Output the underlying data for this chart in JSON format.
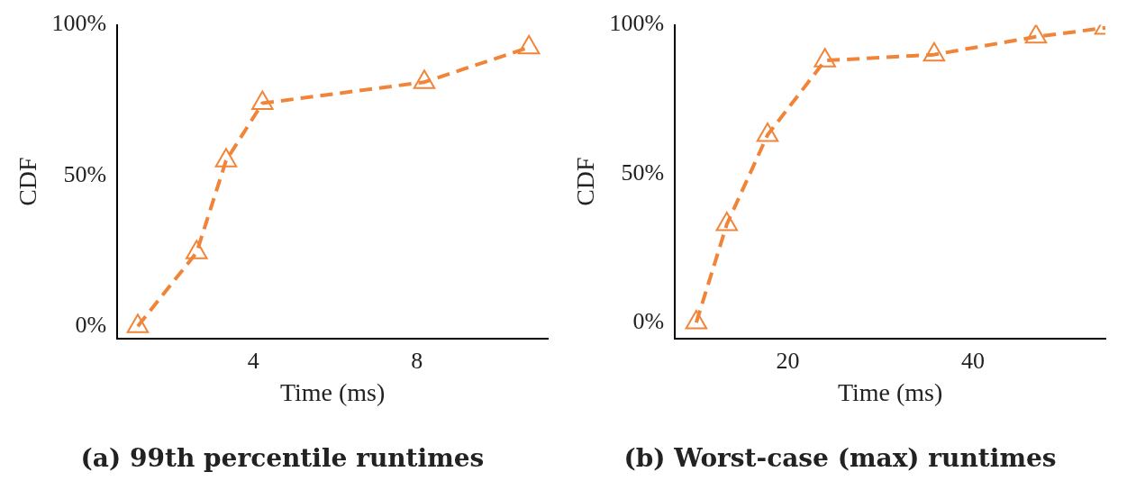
{
  "chart_data": [
    {
      "type": "line",
      "title": "(a) 99th percentile runtimes",
      "xlabel": "Time (ms)",
      "ylabel": "CDF",
      "x": [
        1.17,
        2.61,
        3.33,
        4.22,
        8.18,
        10.74
      ],
      "series": [
        {
          "color": "#f0853a",
          "values": [
            0,
            24.5,
            55,
            74,
            81,
            92.5
          ]
        }
      ],
      "xlim": [
        0.67,
        11.2
      ],
      "xticks": [
        4,
        8
      ],
      "ylim": [
        -4,
        100
      ],
      "yticks": [
        {
          "value": 0,
          "label": "0%"
        },
        {
          "value": 50,
          "label": "50%"
        },
        {
          "value": 100,
          "label": "100%"
        }
      ],
      "marker": "triangle",
      "line_style": "dashed",
      "grid": false,
      "legend": false
    },
    {
      "type": "line",
      "title": "(b) Worst-case (max) runtimes",
      "xlabel": "Time (ms)",
      "ylabel": "CDF",
      "x": [
        10.1,
        13.4,
        17.8,
        24,
        35.8,
        46.8,
        54.3
      ],
      "series": [
        {
          "color": "#f0853a",
          "values": [
            0,
            33,
            63,
            88,
            90,
            96,
            99
          ]
        }
      ],
      "xlim": [
        7.8,
        54.3
      ],
      "xticks": [
        20,
        40
      ],
      "ylim": [
        -5.3,
        100
      ],
      "yticks": [
        {
          "value": 0,
          "label": "0%"
        },
        {
          "value": 50,
          "label": "50%"
        },
        {
          "value": 100,
          "label": "100%"
        }
      ],
      "marker": "triangle",
      "line_style": "dashed",
      "grid": false,
      "legend": false
    }
  ]
}
